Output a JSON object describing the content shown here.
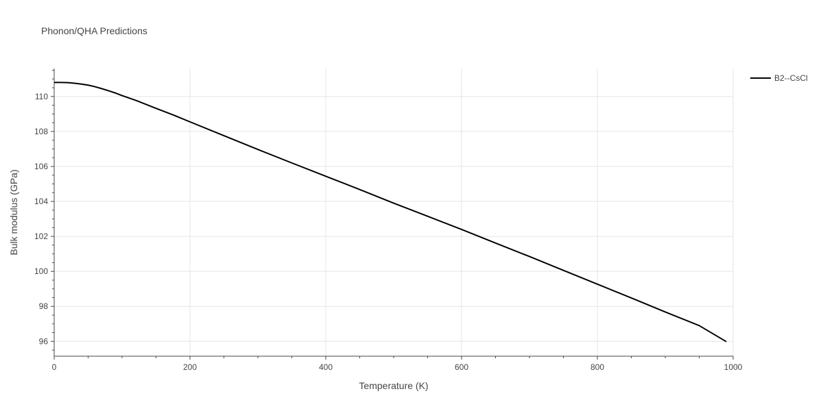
{
  "chart_data": {
    "type": "line",
    "title": "Phonon/QHA Predictions",
    "xlabel": "Temperature (K)",
    "ylabel": "Bulk modulus (GPa)",
    "xlim": [
      0,
      1000
    ],
    "ylim": [
      95.15,
      111.6
    ],
    "x_ticks": [
      0,
      200,
      400,
      600,
      800,
      1000
    ],
    "x_tick_labels": [
      "0",
      "200",
      "400",
      "600",
      "800",
      "1000"
    ],
    "y_ticks": [
      96,
      98,
      100,
      102,
      104,
      106,
      108,
      110
    ],
    "y_tick_labels": [
      "96",
      "98",
      "100",
      "102",
      "104",
      "106",
      "108",
      "110"
    ],
    "grid": true,
    "legend_position": "top-right",
    "series": [
      {
        "name": "B2--CsCl",
        "color": "#000000",
        "x": [
          0,
          10,
          20,
          30,
          40,
          50,
          60,
          70,
          80,
          90,
          100,
          120,
          130,
          150,
          175,
          200,
          250,
          300,
          350,
          400,
          450,
          500,
          550,
          600,
          650,
          700,
          750,
          800,
          850,
          900,
          950,
          990
        ],
        "y": [
          110.8,
          110.8,
          110.79,
          110.76,
          110.71,
          110.65,
          110.56,
          110.45,
          110.33,
          110.2,
          110.05,
          109.78,
          109.63,
          109.32,
          108.95,
          108.55,
          107.76,
          106.97,
          106.2,
          105.44,
          104.68,
          103.9,
          103.15,
          102.4,
          101.62,
          100.85,
          100.06,
          99.27,
          98.48,
          97.68,
          96.9,
          95.98
        ]
      }
    ]
  }
}
